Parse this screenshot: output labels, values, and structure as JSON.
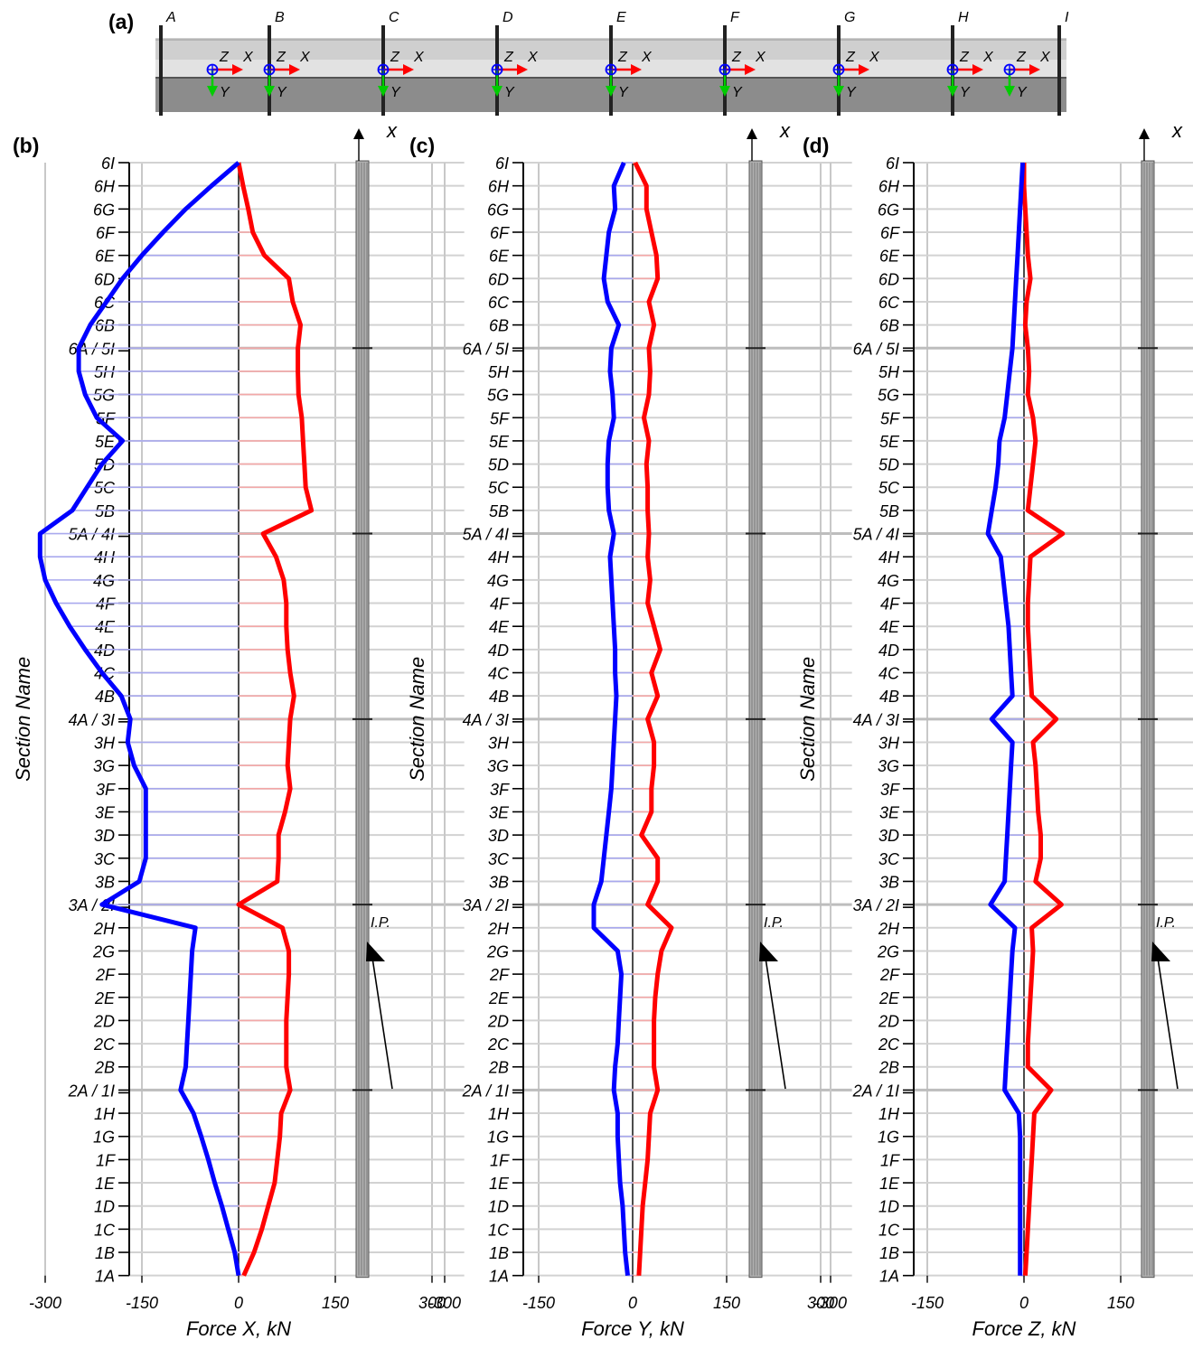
{
  "figure": {
    "panel_labels": [
      "(a)",
      "(b)",
      "(c)",
      "(d)"
    ]
  },
  "beam_diagram": {
    "sections": [
      "A",
      "B",
      "C",
      "D",
      "E",
      "F",
      "G",
      "H",
      "I"
    ],
    "axis_labels": {
      "z": "Z",
      "x": "X",
      "y": "Y"
    }
  },
  "sections": [
    "6I",
    "6H",
    "6G",
    "6F",
    "6E",
    "6D",
    "6C",
    "6B",
    "6A / 5I",
    "5H",
    "5G",
    "5F",
    "5E",
    "5D",
    "5C",
    "5B",
    "5A / 4I",
    "4H",
    "4G",
    "4F",
    "4E",
    "4D",
    "4C",
    "4B",
    "4A / 3I",
    "3H",
    "3G",
    "3F",
    "3E",
    "3D",
    "3C",
    "3B",
    "3A / 2I",
    "2H",
    "2G",
    "2F",
    "2E",
    "2D",
    "2C",
    "2B",
    "2A / 1I",
    "1H",
    "1G",
    "1F",
    "1E",
    "1D",
    "1C",
    "1B",
    "1A"
  ],
  "colors": {
    "max": "#ff0000",
    "min": "#0000ff",
    "hatch_max": "#f4a8a8",
    "hatch_min": "#a9a9ee",
    "grid": "#c8c8c8",
    "beam": "#b0b0b0",
    "green": "#00cc00"
  },
  "annotations": {
    "x_axis": "x",
    "ip": "I.P."
  },
  "chart_data": [
    {
      "type": "line",
      "panel": "(b)",
      "xlabel": "Force X, kN",
      "ylabel": "Section Name",
      "xlim": [
        -350,
        350
      ],
      "xticks": [
        -300,
        -150,
        0,
        150,
        300
      ],
      "grid": true,
      "series": [
        {
          "color": "red",
          "values": [
            0,
            7,
            15,
            22,
            40,
            78,
            84,
            96,
            92,
            92,
            93,
            98,
            100,
            102,
            104,
            113,
            38,
            58,
            70,
            74,
            74,
            76,
            80,
            86,
            80,
            78,
            76,
            80,
            72,
            62,
            62,
            60,
            0,
            68,
            78,
            78,
            76,
            74,
            74,
            74,
            80,
            66,
            64,
            60,
            56,
            46,
            36,
            24,
            8
          ]
        },
        {
          "color": "blue",
          "values": [
            0,
            -42,
            -82,
            -117,
            -150,
            -180,
            -205,
            -230,
            -248,
            -248,
            -238,
            -220,
            -180,
            -212,
            -235,
            -258,
            -308,
            -308,
            -300,
            -283,
            -262,
            -238,
            -212,
            -182,
            -168,
            -172,
            -162,
            -144,
            -144,
            -144,
            -144,
            -154,
            -212,
            -67,
            -72,
            -74,
            -76,
            -78,
            -80,
            -82,
            -90,
            -70,
            -58,
            -47,
            -37,
            -26,
            -16,
            -6,
            0
          ]
        }
      ]
    },
    {
      "type": "line",
      "panel": "(c)",
      "xlabel": "Force Y, kN",
      "ylabel": "Section Name",
      "xlim": [
        -350,
        350
      ],
      "xticks": [
        -300,
        -150,
        0,
        150,
        300
      ],
      "grid": true,
      "series": [
        {
          "color": "red",
          "values": [
            4,
            22,
            22,
            30,
            38,
            40,
            26,
            34,
            26,
            28,
            26,
            18,
            26,
            22,
            24,
            24,
            26,
            24,
            28,
            24,
            34,
            44,
            30,
            40,
            24,
            34,
            34,
            30,
            30,
            14,
            40,
            40,
            24,
            62,
            46,
            40,
            36,
            34,
            34,
            34,
            40,
            28,
            26,
            24,
            20,
            16,
            14,
            12,
            10
          ]
        },
        {
          "color": "blue",
          "values": [
            -14,
            -30,
            -28,
            -38,
            -42,
            -46,
            -40,
            -22,
            -34,
            -36,
            -32,
            -30,
            -38,
            -40,
            -40,
            -38,
            -30,
            -36,
            -34,
            -32,
            -30,
            -28,
            -28,
            -26,
            -28,
            -30,
            -32,
            -34,
            -38,
            -42,
            -46,
            -50,
            -62,
            -62,
            -24,
            -18,
            -20,
            -22,
            -24,
            -28,
            -30,
            -24,
            -24,
            -22,
            -20,
            -16,
            -14,
            -12,
            -8
          ]
        }
      ]
    },
    {
      "type": "line",
      "panel": "(d)",
      "xlabel": "Force Z, kN",
      "ylabel": "Section Name",
      "xlim": [
        -350,
        350
      ],
      "xticks": [
        -300,
        -150,
        0,
        150,
        300
      ],
      "grid": true,
      "series": [
        {
          "color": "red",
          "values": [
            0,
            0,
            2,
            4,
            6,
            10,
            4,
            2,
            6,
            8,
            6,
            14,
            18,
            14,
            10,
            6,
            60,
            10,
            8,
            6,
            6,
            8,
            10,
            12,
            50,
            14,
            18,
            20,
            22,
            26,
            26,
            18,
            58,
            12,
            14,
            12,
            10,
            8,
            6,
            6,
            42,
            16,
            14,
            12,
            10,
            8,
            6,
            4,
            2
          ]
        },
        {
          "color": "blue",
          "values": [
            -2,
            -4,
            -6,
            -8,
            -10,
            -12,
            -14,
            -16,
            -18,
            -22,
            -26,
            -30,
            -38,
            -40,
            -44,
            -50,
            -56,
            -36,
            -32,
            -28,
            -24,
            -22,
            -20,
            -18,
            -50,
            -18,
            -20,
            -22,
            -24,
            -26,
            -28,
            -30,
            -52,
            -14,
            -18,
            -20,
            -22,
            -24,
            -26,
            -28,
            -30,
            -8,
            -6,
            -6,
            -6,
            -6,
            -6,
            -6,
            -6
          ]
        }
      ]
    }
  ]
}
